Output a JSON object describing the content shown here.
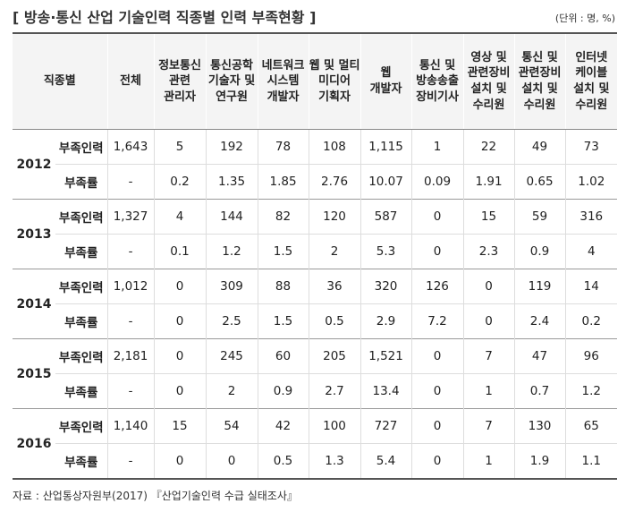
{
  "header": {
    "title": "[ 방송·통신 산업 기술인력 직종별 인력 부족현황 ]",
    "unit": "(단위 : 명, %)"
  },
  "table": {
    "columns": [
      "직종별",
      "전체",
      "정보통신\n관련\n관리자",
      "통신공학\n기술자 및\n연구원",
      "네트워크\n시스템\n개발자",
      "웹 및 멀티\n미디어\n기획자",
      "웹\n개발자",
      "통신 및\n방송송출\n장비기사",
      "영상 및\n관련장비\n설치 및\n수리원",
      "통신 및\n관련장비\n설치 및\n수리원",
      "인터넷\n케이블\n설치 및\n수리원"
    ],
    "groups": [
      {
        "year": "2012",
        "rows": [
          {
            "label": "부족인력",
            "values": [
              "1,643",
              "5",
              "192",
              "78",
              "108",
              "1,115",
              "1",
              "22",
              "49",
              "73"
            ]
          },
          {
            "label": "부족률",
            "values": [
              "-",
              "0.2",
              "1.35",
              "1.85",
              "2.76",
              "10.07",
              "0.09",
              "1.91",
              "0.65",
              "1.02"
            ]
          }
        ]
      },
      {
        "year": "2013",
        "rows": [
          {
            "label": "부족인력",
            "values": [
              "1,327",
              "4",
              "144",
              "82",
              "120",
              "587",
              "0",
              "15",
              "59",
              "316"
            ]
          },
          {
            "label": "부족률",
            "values": [
              "-",
              "0.1",
              "1.2",
              "1.5",
              "2",
              "5.3",
              "0",
              "2.3",
              "0.9",
              "4"
            ]
          }
        ]
      },
      {
        "year": "2014",
        "rows": [
          {
            "label": "부족인력",
            "values": [
              "1,012",
              "0",
              "309",
              "88",
              "36",
              "320",
              "126",
              "0",
              "119",
              "14"
            ]
          },
          {
            "label": "부족률",
            "values": [
              "-",
              "0",
              "2.5",
              "1.5",
              "0.5",
              "2.9",
              "7.2",
              "0",
              "2.4",
              "0.2"
            ]
          }
        ]
      },
      {
        "year": "2015",
        "rows": [
          {
            "label": "부족인력",
            "values": [
              "2,181",
              "0",
              "245",
              "60",
              "205",
              "1,521",
              "0",
              "7",
              "47",
              "96"
            ]
          },
          {
            "label": "부족률",
            "values": [
              "-",
              "0",
              "2",
              "0.9",
              "2.7",
              "13.4",
              "0",
              "1",
              "0.7",
              "1.2"
            ]
          }
        ]
      },
      {
        "year": "2016",
        "rows": [
          {
            "label": "부족인력",
            "values": [
              "1,140",
              "15",
              "54",
              "42",
              "100",
              "727",
              "0",
              "7",
              "130",
              "65"
            ]
          },
          {
            "label": "부족률",
            "values": [
              "-",
              "0",
              "0",
              "0.5",
              "1.3",
              "5.4",
              "0",
              "1",
              "1.9",
              "1.1"
            ]
          }
        ]
      }
    ]
  },
  "source": "자료 : 산업통상자원부(2017) 『산업기술인력 수급 실태조사』"
}
